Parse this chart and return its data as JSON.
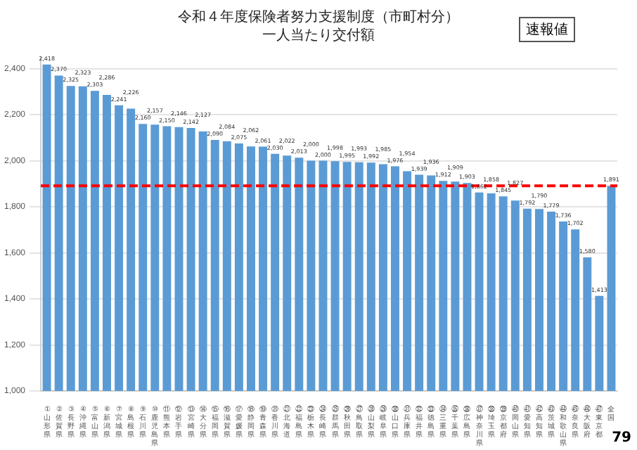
{
  "chart_data": {
    "type": "bar",
    "title": "令和４年度保険者努力支援制度（市町村分）一人当たり交付額",
    "categories": [
      "①山形県",
      "②佐賀県",
      "③長野県",
      "④沖縄県",
      "⑤富山県",
      "⑥新潟県",
      "⑦宮城県",
      "⑧島根県",
      "⑨石川県",
      "⑩鹿児島県",
      "⑪熊本県",
      "⑫岩手県",
      "⑬宮崎県",
      "⑭大分県",
      "⑮福岡県",
      "⑯滋賀県",
      "⑰愛媛県",
      "⑱静岡県",
      "⑲青森県",
      "⑳香川県",
      "㉑北海道",
      "㉒福島県",
      "㉓栃木県",
      "㉔長崎県",
      "㉕群馬県",
      "㉖秋田県",
      "㉗鳥取県",
      "㉘山梨県",
      "㉙岐阜県",
      "㉚山口県",
      "㉛兵庫県",
      "㉜福井県",
      "㉝徳島県",
      "㉞三重県",
      "㉟千葉県",
      "㊱広島県",
      "㊲神奈川県",
      "㊳埼玉県",
      "㊴京都府",
      "㊵岡山県",
      "㊶愛知県",
      "㊷高知県",
      "㊸茨城県",
      "㊹和歌山県",
      "㊺奈良県",
      "㊻大阪府",
      "㊼東京都",
      "全国"
    ],
    "values": [
      2418,
      2370,
      2325,
      2323,
      2303,
      2286,
      2241,
      2226,
      2160,
      2157,
      2150,
      2146,
      2142,
      2127,
      2090,
      2084,
      2075,
      2062,
      2061,
      2030,
      2022,
      2013,
      2000,
      2000,
      1998,
      1995,
      1993,
      1992,
      1985,
      1976,
      1954,
      1939,
      1936,
      1912,
      1909,
      1903,
      1862,
      1858,
      1845,
      1827,
      1792,
      1790,
      1779,
      1736,
      1702,
      1580,
      1413,
      1891
    ],
    "value_labels": [
      "2,418",
      "2,370",
      "2,325",
      "2,323",
      "2,303",
      "2,286",
      "2,241",
      "2,226",
      "2,160",
      "2,157",
      "2,150",
      "2,146",
      "2,142",
      "2,127",
      "2,090",
      "2,084",
      "2,075",
      "2,062",
      "2,061",
      "2,030",
      "2,022",
      "2,013",
      "2,000",
      "2,000",
      "1,998",
      "1,995",
      "1,993",
      "1,992",
      "1,985",
      "1,976",
      "1,954",
      "1,939",
      "1,936",
      "1,912",
      "1,909",
      "1,903",
      "1,862",
      "1,858",
      "1,845",
      "1,827",
      "1,792",
      "1,790",
      "1,779",
      "1,736",
      "1,702",
      "1,580",
      "1,413",
      "1,891"
    ],
    "color": "#5b9bd5",
    "ylim": [
      1000,
      2450
    ],
    "yticks": [
      {
        "value": 1000,
        "label": "1,000"
      },
      {
        "value": 1200,
        "label": "1,200"
      },
      {
        "value": 1400,
        "label": "1,400"
      },
      {
        "value": 1600,
        "label": "1,600"
      },
      {
        "value": 1800,
        "label": "1,800"
      },
      {
        "value": 2000,
        "label": "2,000"
      },
      {
        "value": 2200,
        "label": "2,200"
      },
      {
        "value": 2400,
        "label": "2,400"
      }
    ],
    "grid": "y",
    "ref_lines": [
      {
        "axis": "y",
        "value": 1891,
        "color": "#ff0000",
        "line_style": "dashed"
      }
    ],
    "annotations": [
      "速報値",
      "79"
    ]
  }
}
